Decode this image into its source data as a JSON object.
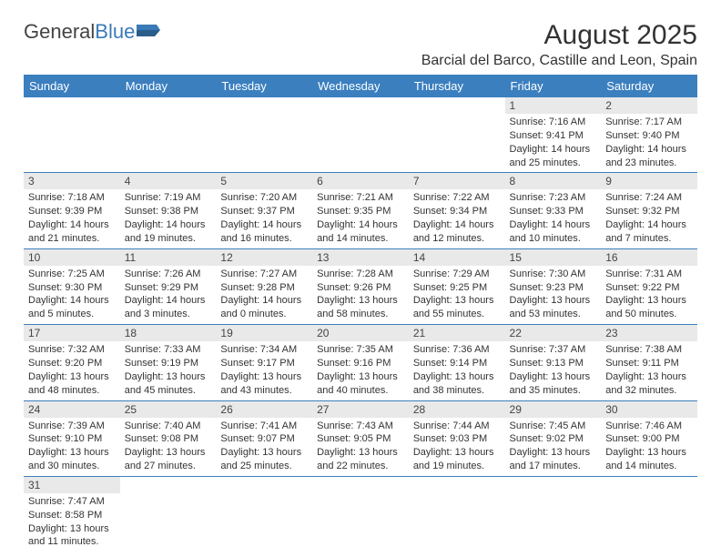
{
  "logo": {
    "word1": "General",
    "word2": "Blue"
  },
  "title": {
    "month": "August 2025",
    "location": "Barcial del Barco, Castille and Leon, Spain"
  },
  "colors": {
    "header_bg": "#3b7fbf",
    "daynum_bg": "#e9e9e9",
    "border": "#3b7fbf"
  },
  "week_headers": [
    "Sunday",
    "Monday",
    "Tuesday",
    "Wednesday",
    "Thursday",
    "Friday",
    "Saturday"
  ],
  "weeks": [
    [
      null,
      null,
      null,
      null,
      null,
      {
        "n": "1",
        "sr": "Sunrise: 7:16 AM",
        "ss": "Sunset: 9:41 PM",
        "d1": "Daylight: 14 hours",
        "d2": "and 25 minutes."
      },
      {
        "n": "2",
        "sr": "Sunrise: 7:17 AM",
        "ss": "Sunset: 9:40 PM",
        "d1": "Daylight: 14 hours",
        "d2": "and 23 minutes."
      }
    ],
    [
      {
        "n": "3",
        "sr": "Sunrise: 7:18 AM",
        "ss": "Sunset: 9:39 PM",
        "d1": "Daylight: 14 hours",
        "d2": "and 21 minutes."
      },
      {
        "n": "4",
        "sr": "Sunrise: 7:19 AM",
        "ss": "Sunset: 9:38 PM",
        "d1": "Daylight: 14 hours",
        "d2": "and 19 minutes."
      },
      {
        "n": "5",
        "sr": "Sunrise: 7:20 AM",
        "ss": "Sunset: 9:37 PM",
        "d1": "Daylight: 14 hours",
        "d2": "and 16 minutes."
      },
      {
        "n": "6",
        "sr": "Sunrise: 7:21 AM",
        "ss": "Sunset: 9:35 PM",
        "d1": "Daylight: 14 hours",
        "d2": "and 14 minutes."
      },
      {
        "n": "7",
        "sr": "Sunrise: 7:22 AM",
        "ss": "Sunset: 9:34 PM",
        "d1": "Daylight: 14 hours",
        "d2": "and 12 minutes."
      },
      {
        "n": "8",
        "sr": "Sunrise: 7:23 AM",
        "ss": "Sunset: 9:33 PM",
        "d1": "Daylight: 14 hours",
        "d2": "and 10 minutes."
      },
      {
        "n": "9",
        "sr": "Sunrise: 7:24 AM",
        "ss": "Sunset: 9:32 PM",
        "d1": "Daylight: 14 hours",
        "d2": "and 7 minutes."
      }
    ],
    [
      {
        "n": "10",
        "sr": "Sunrise: 7:25 AM",
        "ss": "Sunset: 9:30 PM",
        "d1": "Daylight: 14 hours",
        "d2": "and 5 minutes."
      },
      {
        "n": "11",
        "sr": "Sunrise: 7:26 AM",
        "ss": "Sunset: 9:29 PM",
        "d1": "Daylight: 14 hours",
        "d2": "and 3 minutes."
      },
      {
        "n": "12",
        "sr": "Sunrise: 7:27 AM",
        "ss": "Sunset: 9:28 PM",
        "d1": "Daylight: 14 hours",
        "d2": "and 0 minutes."
      },
      {
        "n": "13",
        "sr": "Sunrise: 7:28 AM",
        "ss": "Sunset: 9:26 PM",
        "d1": "Daylight: 13 hours",
        "d2": "and 58 minutes."
      },
      {
        "n": "14",
        "sr": "Sunrise: 7:29 AM",
        "ss": "Sunset: 9:25 PM",
        "d1": "Daylight: 13 hours",
        "d2": "and 55 minutes."
      },
      {
        "n": "15",
        "sr": "Sunrise: 7:30 AM",
        "ss": "Sunset: 9:23 PM",
        "d1": "Daylight: 13 hours",
        "d2": "and 53 minutes."
      },
      {
        "n": "16",
        "sr": "Sunrise: 7:31 AM",
        "ss": "Sunset: 9:22 PM",
        "d1": "Daylight: 13 hours",
        "d2": "and 50 minutes."
      }
    ],
    [
      {
        "n": "17",
        "sr": "Sunrise: 7:32 AM",
        "ss": "Sunset: 9:20 PM",
        "d1": "Daylight: 13 hours",
        "d2": "and 48 minutes."
      },
      {
        "n": "18",
        "sr": "Sunrise: 7:33 AM",
        "ss": "Sunset: 9:19 PM",
        "d1": "Daylight: 13 hours",
        "d2": "and 45 minutes."
      },
      {
        "n": "19",
        "sr": "Sunrise: 7:34 AM",
        "ss": "Sunset: 9:17 PM",
        "d1": "Daylight: 13 hours",
        "d2": "and 43 minutes."
      },
      {
        "n": "20",
        "sr": "Sunrise: 7:35 AM",
        "ss": "Sunset: 9:16 PM",
        "d1": "Daylight: 13 hours",
        "d2": "and 40 minutes."
      },
      {
        "n": "21",
        "sr": "Sunrise: 7:36 AM",
        "ss": "Sunset: 9:14 PM",
        "d1": "Daylight: 13 hours",
        "d2": "and 38 minutes."
      },
      {
        "n": "22",
        "sr": "Sunrise: 7:37 AM",
        "ss": "Sunset: 9:13 PM",
        "d1": "Daylight: 13 hours",
        "d2": "and 35 minutes."
      },
      {
        "n": "23",
        "sr": "Sunrise: 7:38 AM",
        "ss": "Sunset: 9:11 PM",
        "d1": "Daylight: 13 hours",
        "d2": "and 32 minutes."
      }
    ],
    [
      {
        "n": "24",
        "sr": "Sunrise: 7:39 AM",
        "ss": "Sunset: 9:10 PM",
        "d1": "Daylight: 13 hours",
        "d2": "and 30 minutes."
      },
      {
        "n": "25",
        "sr": "Sunrise: 7:40 AM",
        "ss": "Sunset: 9:08 PM",
        "d1": "Daylight: 13 hours",
        "d2": "and 27 minutes."
      },
      {
        "n": "26",
        "sr": "Sunrise: 7:41 AM",
        "ss": "Sunset: 9:07 PM",
        "d1": "Daylight: 13 hours",
        "d2": "and 25 minutes."
      },
      {
        "n": "27",
        "sr": "Sunrise: 7:43 AM",
        "ss": "Sunset: 9:05 PM",
        "d1": "Daylight: 13 hours",
        "d2": "and 22 minutes."
      },
      {
        "n": "28",
        "sr": "Sunrise: 7:44 AM",
        "ss": "Sunset: 9:03 PM",
        "d1": "Daylight: 13 hours",
        "d2": "and 19 minutes."
      },
      {
        "n": "29",
        "sr": "Sunrise: 7:45 AM",
        "ss": "Sunset: 9:02 PM",
        "d1": "Daylight: 13 hours",
        "d2": "and 17 minutes."
      },
      {
        "n": "30",
        "sr": "Sunrise: 7:46 AM",
        "ss": "Sunset: 9:00 PM",
        "d1": "Daylight: 13 hours",
        "d2": "and 14 minutes."
      }
    ],
    [
      {
        "n": "31",
        "sr": "Sunrise: 7:47 AM",
        "ss": "Sunset: 8:58 PM",
        "d1": "Daylight: 13 hours",
        "d2": "and 11 minutes."
      },
      null,
      null,
      null,
      null,
      null,
      null
    ]
  ]
}
